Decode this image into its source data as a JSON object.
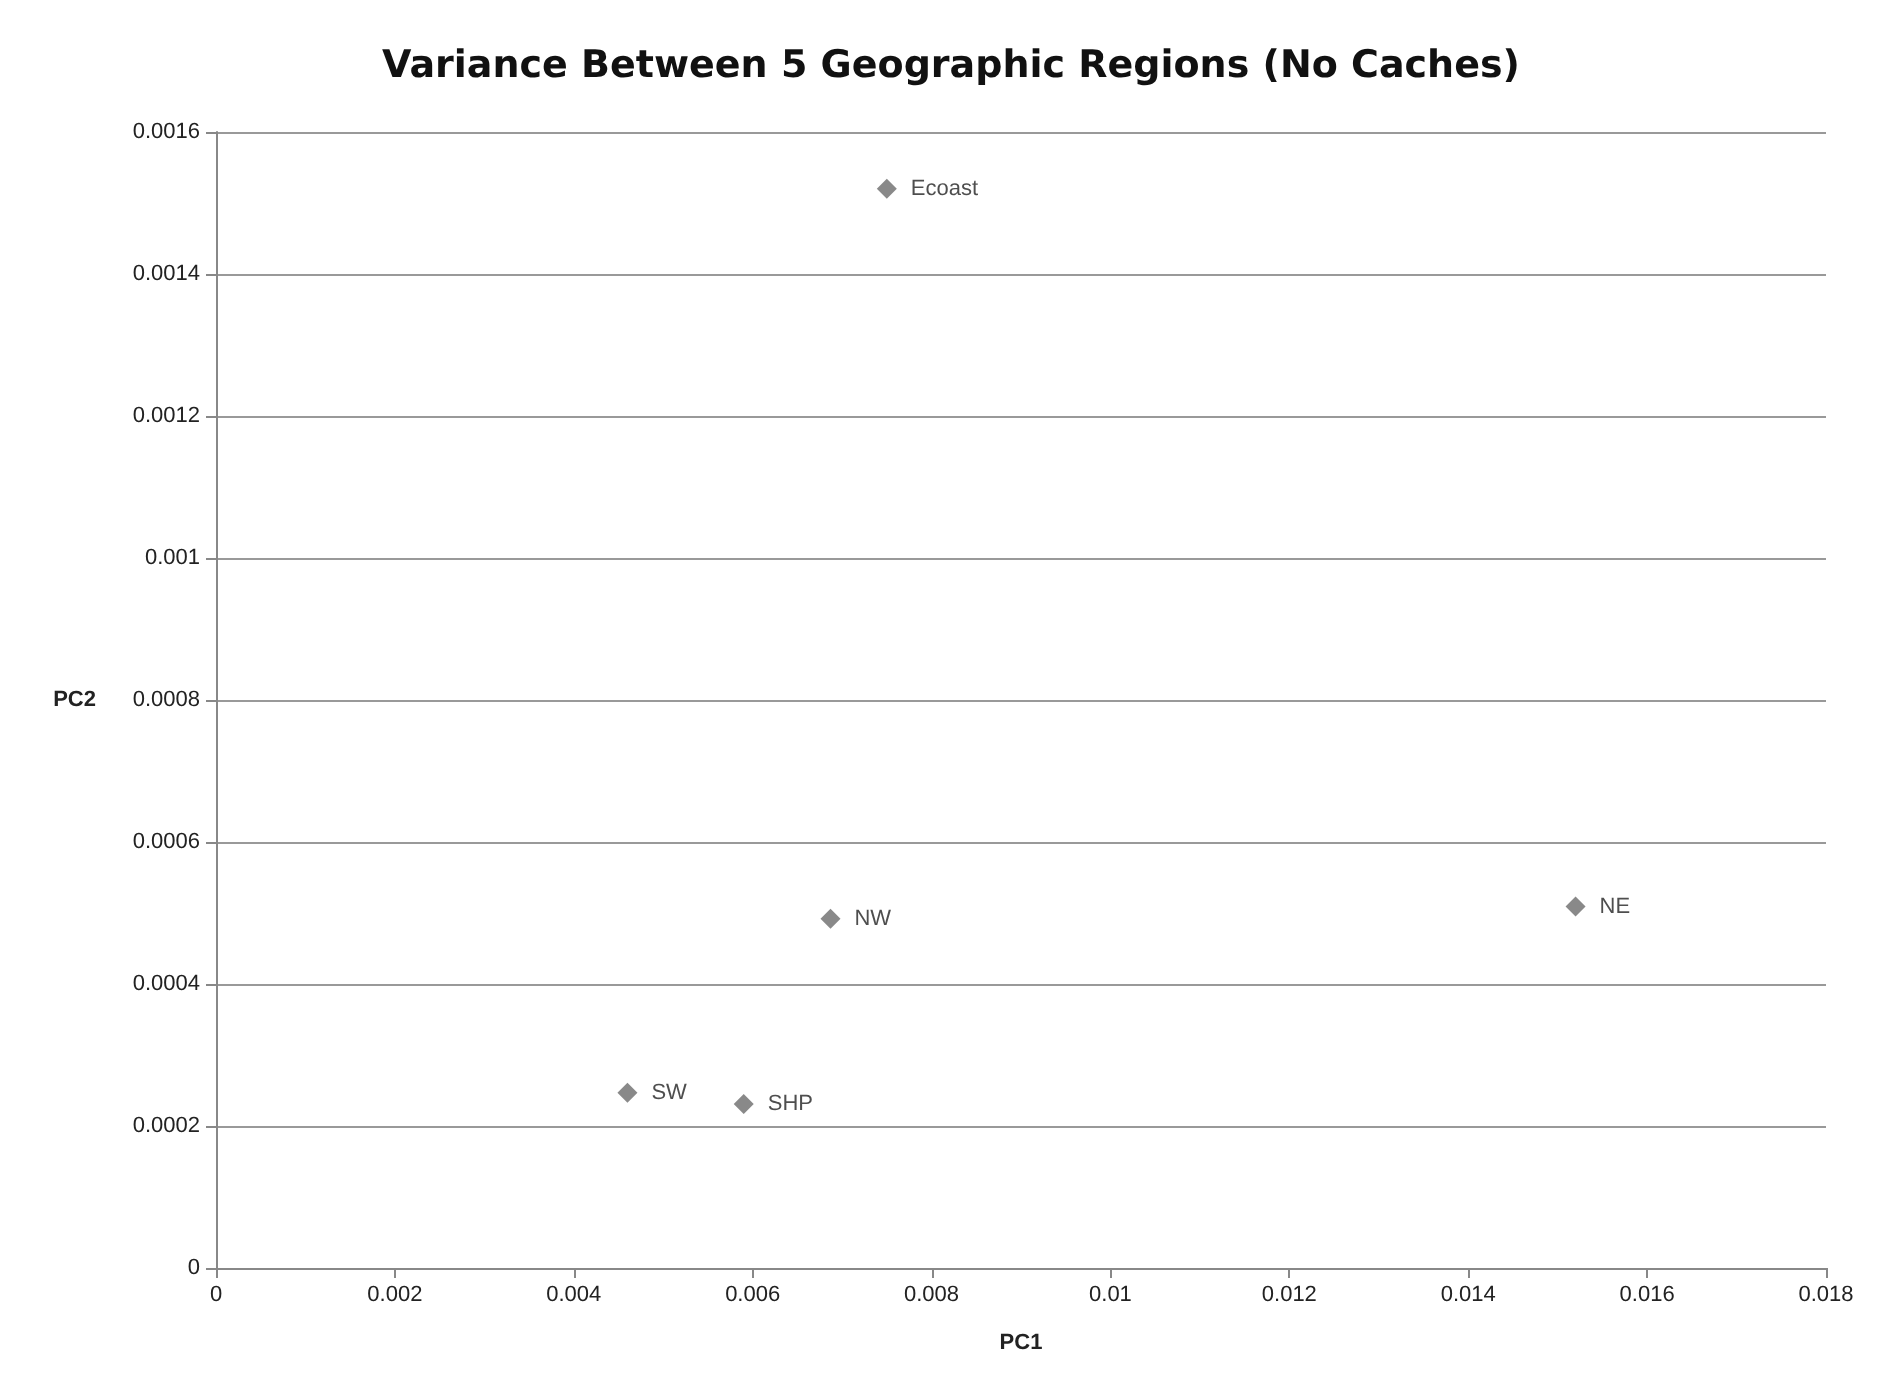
{
  "chart_data": {
    "type": "scatter",
    "title": "Variance Between 5 Geographic Regions (No Caches)",
    "xlabel": "PC1",
    "ylabel": "PC2",
    "x": [
      0.0075,
      0.00687,
      0.0152,
      0.0046,
      0.0059
    ],
    "series": [
      {
        "color": "#6b6b6b",
        "values": [
          0.00152,
          0.000492,
          0.000509,
          0.000247,
          0.000231
        ]
      }
    ],
    "annotations": [
      {
        "text": "Ecoast",
        "x": 0.0075,
        "y": 0.00152
      },
      {
        "text": "NW",
        "x": 0.00687,
        "y": 0.000492
      },
      {
        "text": "NE",
        "x": 0.0152,
        "y": 0.000509
      },
      {
        "text": "SW",
        "x": 0.0046,
        "y": 0.000247
      },
      {
        "text": "SHP",
        "x": 0.0059,
        "y": 0.000231
      }
    ],
    "xlim": [
      0,
      0.018
    ],
    "xticks": [
      0,
      0.002,
      0.004,
      0.006,
      0.008,
      0.01,
      0.012,
      0.014,
      0.016,
      0.018
    ],
    "ylim": [
      0,
      0.0016
    ],
    "yticks": [
      0,
      0.0002,
      0.0004,
      0.0006,
      0.0008,
      0.001,
      0.0012,
      0.0014,
      0.0016
    ],
    "grid": "y",
    "marker": "diamond"
  }
}
